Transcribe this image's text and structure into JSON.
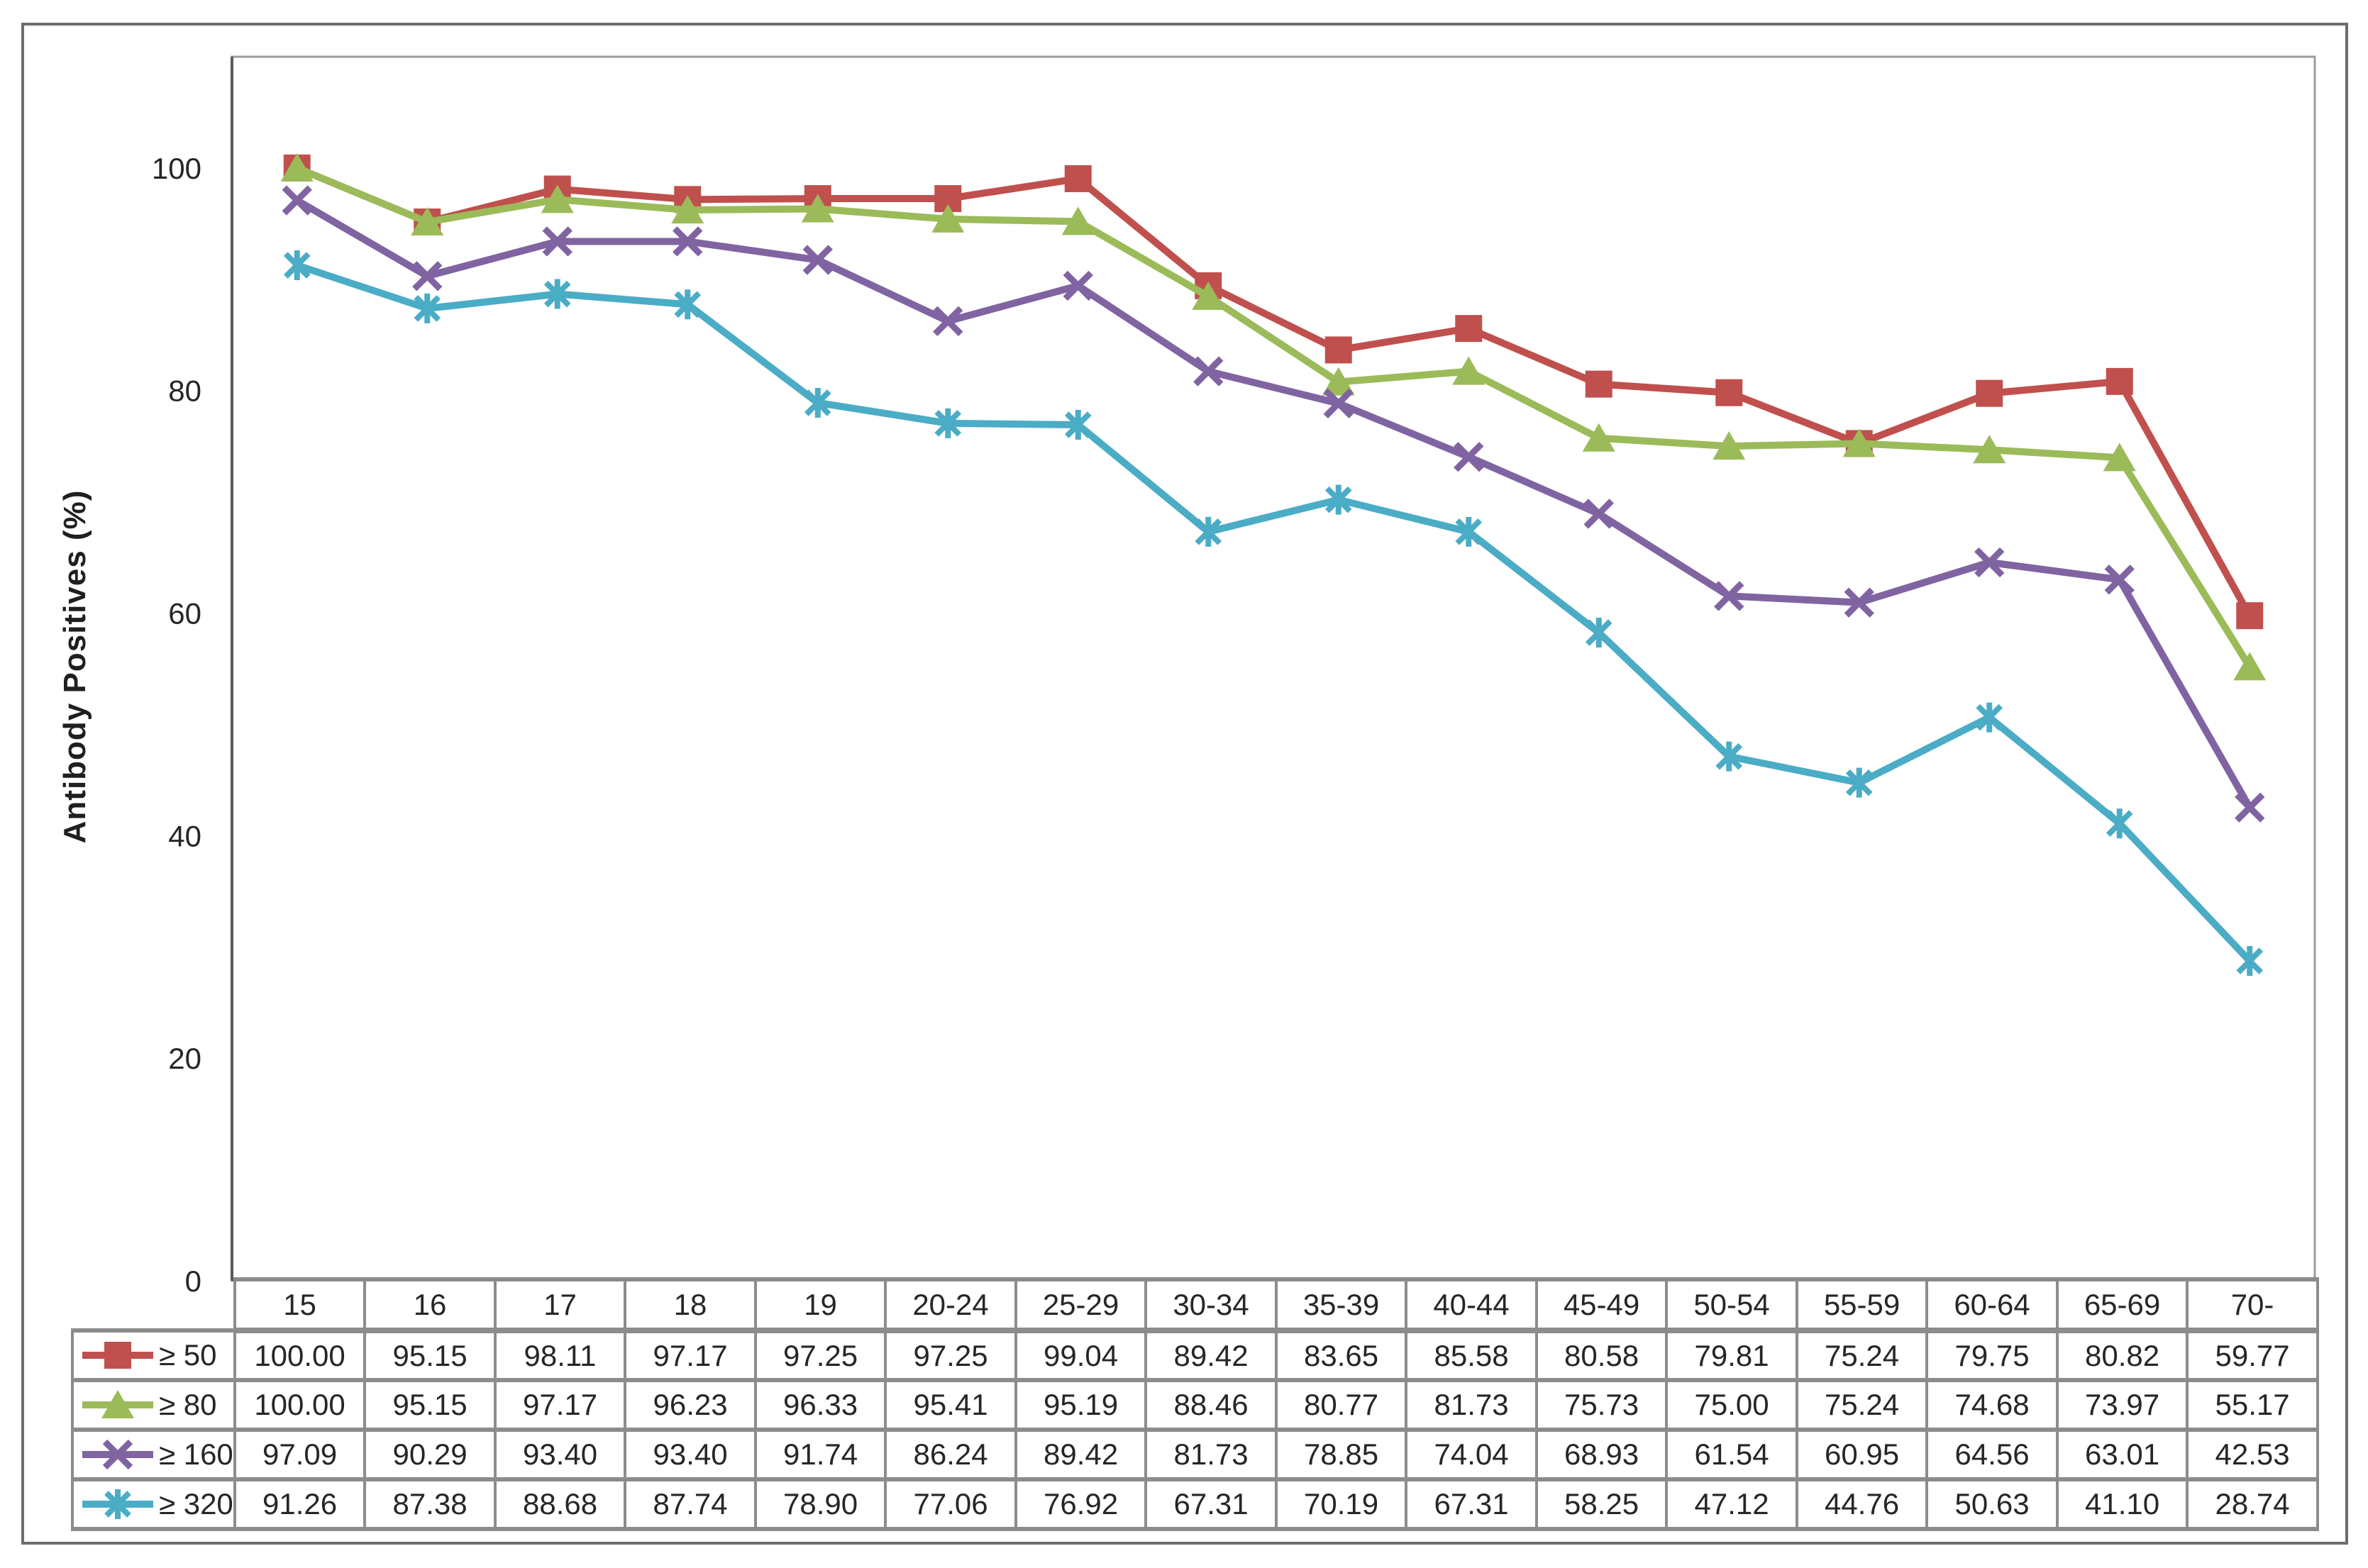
{
  "chart_data": {
    "type": "line",
    "title": "",
    "xlabel": "",
    "ylabel": "Antibody Positives (%)",
    "ylim": [
      0,
      110
    ],
    "y_ticks": [
      0,
      20,
      40,
      60,
      80,
      100
    ],
    "grid": false,
    "legend_position": "data-table-left",
    "value_format": "0.00",
    "categories": [
      "15",
      "16",
      "17",
      "18",
      "19",
      "20-24",
      "25-29",
      "30-34",
      "35-39",
      "40-44",
      "45-49",
      "50-54",
      "55-59",
      "60-64",
      "65-69",
      "70-"
    ],
    "series": [
      {
        "name": "≥ 50",
        "marker": "square",
        "color": "#C0504D",
        "values": [
          100.0,
          95.15,
          98.11,
          97.17,
          97.25,
          97.25,
          99.04,
          89.42,
          83.65,
          85.58,
          80.58,
          79.81,
          75.24,
          79.75,
          80.82,
          59.77
        ]
      },
      {
        "name": "≥ 80",
        "marker": "triangle",
        "color": "#9BBB59",
        "values": [
          100.0,
          95.15,
          97.17,
          96.23,
          96.33,
          95.41,
          95.19,
          88.46,
          80.77,
          81.73,
          75.73,
          75.0,
          75.24,
          74.68,
          73.97,
          55.17
        ]
      },
      {
        "name": "≥ 160",
        "marker": "x",
        "color": "#8064A2",
        "values": [
          97.09,
          90.29,
          93.4,
          93.4,
          91.74,
          86.24,
          89.42,
          81.73,
          78.85,
          74.04,
          68.93,
          61.54,
          60.95,
          64.56,
          63.01,
          42.53
        ]
      },
      {
        "name": "≥ 320",
        "marker": "star",
        "color": "#4BACC6",
        "values": [
          91.26,
          87.38,
          88.68,
          87.74,
          78.9,
          77.06,
          76.92,
          67.31,
          70.19,
          67.31,
          58.25,
          47.12,
          44.76,
          50.63,
          41.1,
          28.74
        ]
      }
    ]
  }
}
